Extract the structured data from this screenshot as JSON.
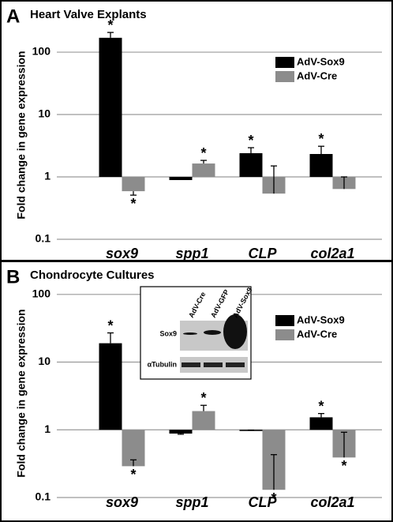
{
  "chart_data": [
    {
      "type": "bar",
      "panel_label": "A",
      "title": "Heart Valve Explants",
      "y_label": "Fold change in gene expression",
      "categories": [
        "sox9",
        "spp1",
        "CLP",
        "col2a1"
      ],
      "series": [
        {
          "name": "AdV-Sox9",
          "color": "#000000",
          "values": [
            170,
            0.89,
            2.4,
            2.33
          ],
          "error_ends": [
            207,
            0.95,
            2.94,
            3.1
          ],
          "stars": [
            "*",
            null,
            "*",
            "*"
          ]
        },
        {
          "name": "AdV-Cre",
          "color": "#8c8c8c",
          "values": [
            0.59,
            1.64,
            0.54,
            0.64
          ],
          "error_ends": [
            0.51,
            1.84,
            1.5,
            1.0
          ],
          "stars": [
            "*",
            "*",
            null,
            null
          ]
        }
      ],
      "ylim": [
        0.1,
        220
      ],
      "yticks": [
        0.1,
        1,
        10,
        100
      ],
      "log_scale": true,
      "grid": true,
      "legend": "upper right"
    },
    {
      "type": "bar",
      "panel_label": "B",
      "title": "Chondrocyte Cultures",
      "y_label": "Fold change in gene expression",
      "categories": [
        "sox9",
        "spp1",
        "CLP",
        "col2a1"
      ],
      "series": [
        {
          "name": "AdV-Sox9",
          "color": "#000000",
          "values": [
            19,
            0.88,
            0.98,
            1.53
          ],
          "error_ends": [
            27,
            0.86,
            0.99,
            1.74
          ],
          "stars": [
            "*",
            null,
            null,
            "*"
          ]
        },
        {
          "name": "AdV-Cre",
          "color": "#8c8c8c",
          "values": [
            0.29,
            1.89,
            0.13,
            0.39
          ],
          "error_ends": [
            0.36,
            2.3,
            0.43,
            0.92
          ],
          "stars": [
            "*",
            "*",
            "*",
            "*"
          ]
        }
      ],
      "ylim": [
        0.1,
        120
      ],
      "yticks": [
        0.1,
        1,
        10,
        100
      ],
      "log_scale": true,
      "grid": true,
      "legend": "upper right",
      "inset": {
        "lanes": [
          "AdV-Cre",
          "AdV-GFP",
          "AdV-Sox9"
        ],
        "rows": [
          "Sox9",
          "αTubulin"
        ]
      }
    }
  ]
}
